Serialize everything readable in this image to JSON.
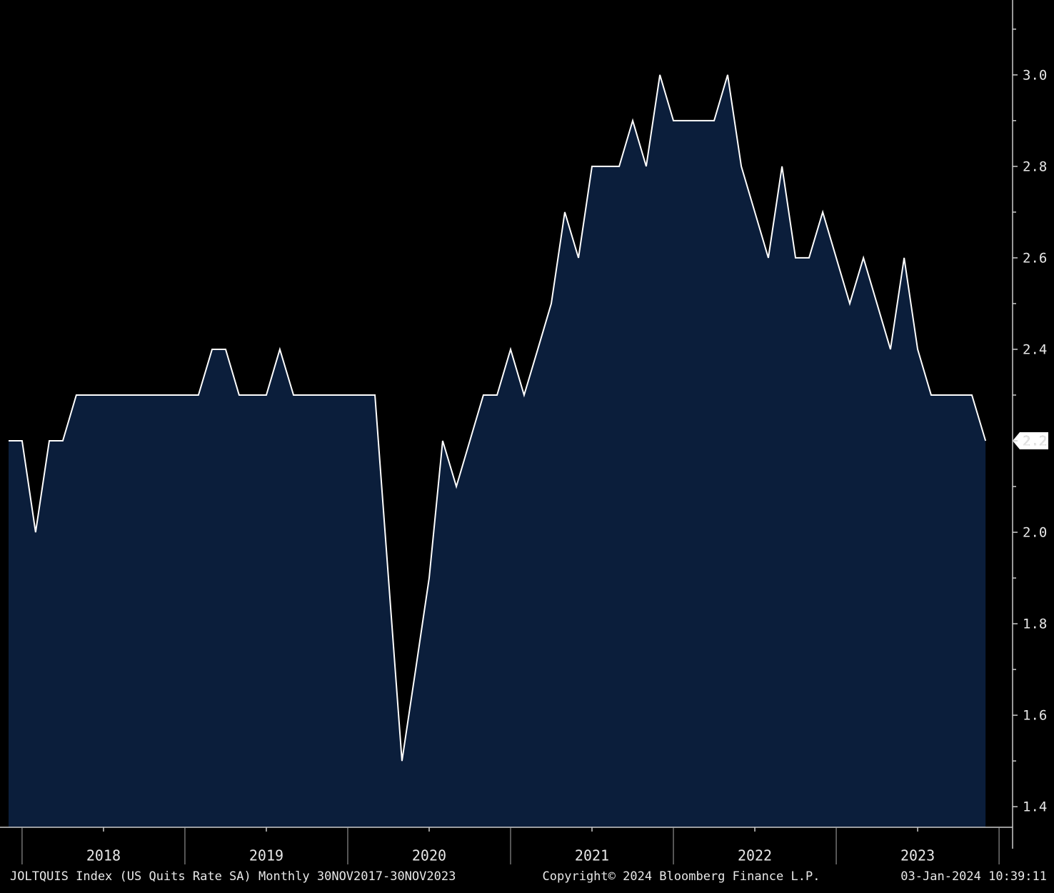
{
  "chart_data": {
    "type": "area",
    "series": [
      {
        "name": "JOLTQUIS Index (US Quits Rate SA)",
        "color": "#ffffff",
        "fill": "#0b1e3b",
        "x": [
          2017.917,
          2018.0,
          2018.083,
          2018.167,
          2018.25,
          2018.333,
          2018.417,
          2018.5,
          2018.583,
          2018.667,
          2018.75,
          2018.833,
          2018.917,
          2019.0,
          2019.083,
          2019.167,
          2019.25,
          2019.333,
          2019.417,
          2019.5,
          2019.583,
          2019.667,
          2019.75,
          2019.833,
          2019.917,
          2020.0,
          2020.083,
          2020.167,
          2020.25,
          2020.333,
          2020.417,
          2020.5,
          2020.583,
          2020.667,
          2020.75,
          2020.833,
          2020.917,
          2021.0,
          2021.083,
          2021.167,
          2021.25,
          2021.333,
          2021.417,
          2021.5,
          2021.583,
          2021.667,
          2021.75,
          2021.833,
          2021.917,
          2022.0,
          2022.083,
          2022.167,
          2022.25,
          2022.333,
          2022.417,
          2022.5,
          2022.583,
          2022.667,
          2022.75,
          2022.833,
          2022.917,
          2023.0,
          2023.083,
          2023.167,
          2023.25,
          2023.333,
          2023.417,
          2023.5,
          2023.583,
          2023.667,
          2023.75,
          2023.833,
          2023.917
        ],
        "values": [
          2.2,
          2.2,
          2.0,
          2.2,
          2.2,
          2.3,
          2.3,
          2.3,
          2.3,
          2.3,
          2.3,
          2.3,
          2.3,
          2.3,
          2.3,
          2.4,
          2.4,
          2.3,
          2.3,
          2.3,
          2.4,
          2.3,
          2.3,
          2.3,
          2.3,
          2.3,
          2.3,
          2.3,
          1.9,
          1.5,
          1.7,
          1.9,
          2.2,
          2.1,
          2.2,
          2.3,
          2.3,
          2.4,
          2.3,
          2.4,
          2.5,
          2.7,
          2.6,
          2.8,
          2.8,
          2.8,
          2.9,
          2.8,
          3.0,
          2.9,
          2.9,
          2.9,
          2.9,
          3.0,
          2.8,
          2.7,
          2.6,
          2.8,
          2.6,
          2.6,
          2.7,
          2.6,
          2.5,
          2.6,
          2.5,
          2.4,
          2.6,
          2.4,
          2.3,
          2.3,
          2.3,
          2.3,
          2.2
        ]
      }
    ],
    "xlim": [
      2017.917,
      2024.083
    ],
    "xticks": [
      {
        "value": 2018.5,
        "label": "2018"
      },
      {
        "value": 2019.5,
        "label": "2019"
      },
      {
        "value": 2020.5,
        "label": "2020"
      },
      {
        "value": 2021.5,
        "label": "2021"
      },
      {
        "value": 2022.5,
        "label": "2022"
      },
      {
        "value": 2023.5,
        "label": "2023"
      }
    ],
    "xseparators": [
      2018,
      2019,
      2020,
      2021,
      2022,
      2023,
      2024
    ],
    "ylim": [
      1.355,
      3.145
    ],
    "yticks": [
      1.4,
      1.6,
      1.8,
      {
        "value": 2,
        "label": "2.0"
      },
      2.2,
      2.4,
      2.6,
      2.8,
      {
        "value": 3,
        "label": "3.0"
      }
    ],
    "yminor_ticks": [
      1.5,
      1.7,
      1.9,
      2.1,
      2.3,
      2.5,
      2.7,
      2.9,
      3.1
    ],
    "footer": [
      "JOLTQUIS Index (US Quits Rate SA)  Monthly 30NOV2017-30NOV2023",
      "Copyright© 2024 Bloomberg Finance L.P.",
      "03-Jan-2024 10:39:11"
    ]
  }
}
